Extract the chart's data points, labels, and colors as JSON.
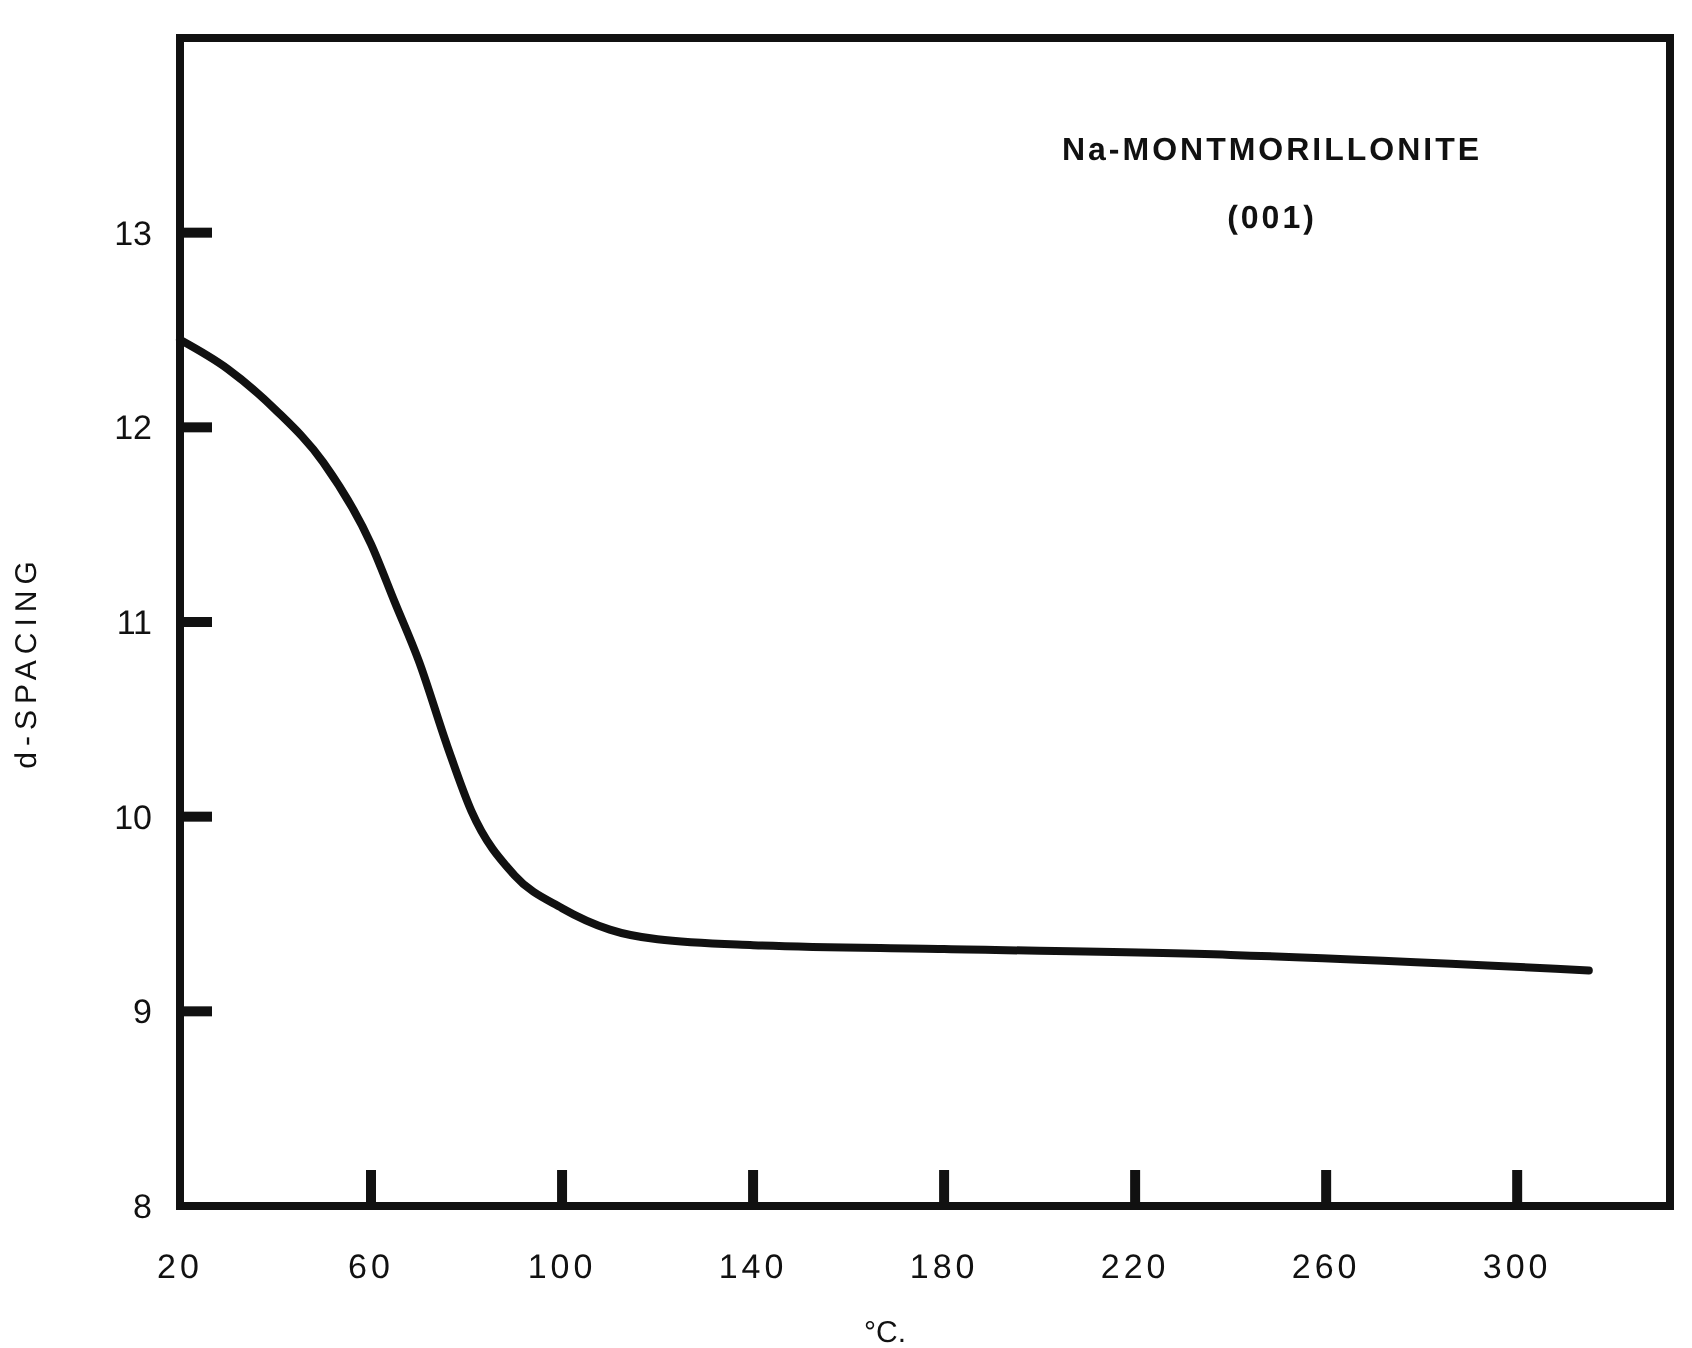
{
  "chart_data": {
    "type": "line",
    "xlabel": "°C.",
    "ylabel": "d-SPACING",
    "annotations": [
      "Na-MONTMORILLONITE",
      "(001)"
    ],
    "xlim": [
      20,
      332
    ],
    "ylim": [
      8,
      14
    ],
    "xticks": [
      20,
      60,
      100,
      140,
      180,
      220,
      260,
      300
    ],
    "yticks": [
      8,
      9,
      10,
      11,
      12,
      13
    ],
    "grid": false,
    "marker": "none",
    "line_style": "solid",
    "series": [
      {
        "color": "#111111",
        "x": [
          20,
          30,
          40,
          50,
          60,
          65,
          70,
          76,
          81,
          90,
          100,
          110,
          120,
          140,
          180,
          240,
          315
        ],
        "values": [
          12.45,
          12.3,
          12.09,
          11.82,
          11.4,
          11.1,
          10.8,
          10.36,
          10.03,
          9.7,
          9.53,
          9.42,
          9.37,
          9.34,
          9.32,
          9.29,
          9.21
        ]
      }
    ]
  }
}
